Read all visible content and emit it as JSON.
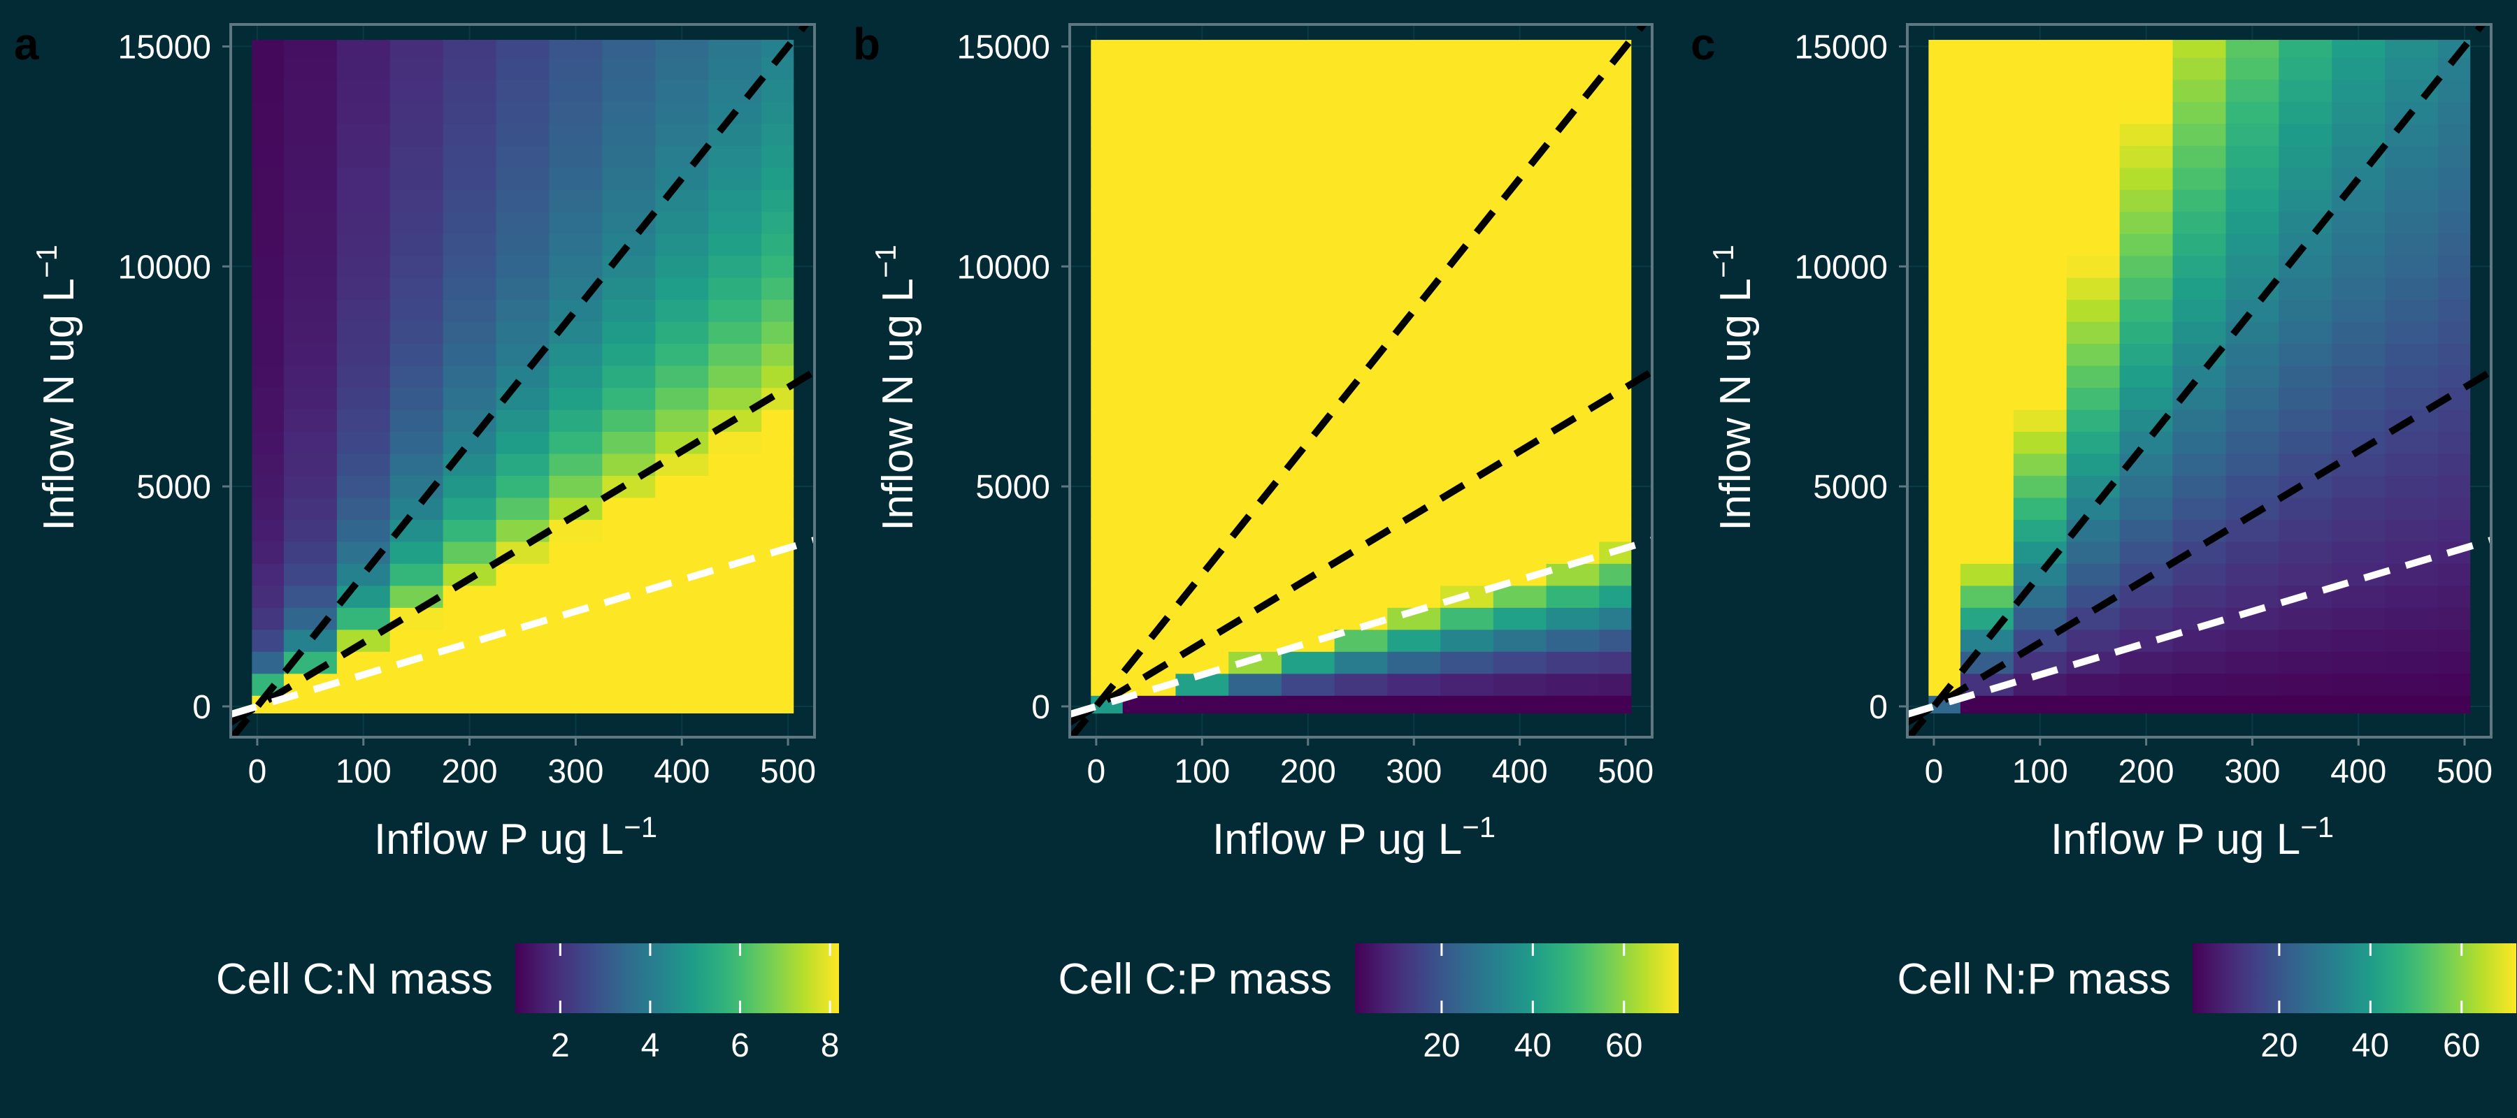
{
  "chart_data": [
    {
      "type": "heatmap",
      "panel_label": "a",
      "xlabel": "Inflow P ug L",
      "xlabel_sup": "−1",
      "ylabel": "Inflow N ug L",
      "ylabel_sup": "−1",
      "xlim": [
        -25,
        525
      ],
      "ylim": [
        -700,
        15500
      ],
      "x_ticks": [
        0,
        100,
        200,
        300,
        400,
        500
      ],
      "y_ticks": [
        0,
        5000,
        10000,
        15000
      ],
      "x_centers": [
        0,
        50,
        100,
        150,
        200,
        250,
        300,
        350,
        400,
        450,
        500
      ],
      "y_range": [
        0,
        15000
      ],
      "y_step": 500,
      "colorbar": {
        "title": "Cell C:N mass",
        "min": 1,
        "max": 8.2,
        "ticks": [
          2,
          4,
          6,
          8
        ]
      },
      "value_model": "C:N ratio; saturates at 8.2 (yellow) below the white dashed line, dark purple at high N",
      "dashed_lines": [
        {
          "color": "#000000",
          "slope": 30,
          "intercept": 0
        },
        {
          "color": "#000000",
          "slope": 14.5,
          "intercept": 0
        },
        {
          "color": "#ffffff",
          "slope": 7.2,
          "intercept": 0
        }
      ]
    },
    {
      "type": "heatmap",
      "panel_label": "b",
      "xlabel": "Inflow P ug L",
      "xlabel_sup": "−1",
      "ylabel": "Inflow N ug L",
      "ylabel_sup": "−1",
      "xlim": [
        -25,
        525
      ],
      "ylim": [
        -700,
        15500
      ],
      "x_ticks": [
        0,
        100,
        200,
        300,
        400,
        500
      ],
      "y_ticks": [
        0,
        5000,
        10000,
        15000
      ],
      "x_centers": [
        0,
        50,
        100,
        150,
        200,
        250,
        300,
        350,
        400,
        450,
        500
      ],
      "y_range": [
        0,
        15000
      ],
      "y_step": 500,
      "colorbar": {
        "title": "Cell C:P mass",
        "min": 1,
        "max": 72,
        "ticks": [
          20,
          40,
          60
        ]
      },
      "value_model": "C:P ratio; yellow (max) above roughly N = 7.5 * P, purple at low N",
      "dashed_lines": [
        {
          "color": "#000000",
          "slope": 30,
          "intercept": 0
        },
        {
          "color": "#000000",
          "slope": 14.5,
          "intercept": 0
        },
        {
          "color": "#ffffff",
          "slope": 7.2,
          "intercept": 0
        }
      ]
    },
    {
      "type": "heatmap",
      "panel_label": "c",
      "xlabel": "Inflow P ug L",
      "xlabel_sup": "−1",
      "ylabel": "Inflow N ug L",
      "ylabel_sup": "−1",
      "xlim": [
        -25,
        525
      ],
      "ylim": [
        -700,
        15500
      ],
      "x_ticks": [
        0,
        100,
        200,
        300,
        400,
        500
      ],
      "y_ticks": [
        0,
        5000,
        10000,
        15000
      ],
      "x_centers": [
        0,
        50,
        100,
        150,
        200,
        250,
        300,
        350,
        400,
        450,
        500
      ],
      "y_range": [
        0,
        15000
      ],
      "y_step": 500,
      "colorbar": {
        "title": "Cell N:P mass",
        "min": 1,
        "max": 72,
        "ticks": [
          20,
          40,
          60
        ]
      },
      "value_model": "N:P ratio; highest (yellow) at low P / high N, lowest (purple) at high P / low N",
      "dashed_lines": [
        {
          "color": "#000000",
          "slope": 30,
          "intercept": 0
        },
        {
          "color": "#000000",
          "slope": 14.5,
          "intercept": 0
        },
        {
          "color": "#ffffff",
          "slope": 7.2,
          "intercept": 0
        }
      ]
    }
  ]
}
